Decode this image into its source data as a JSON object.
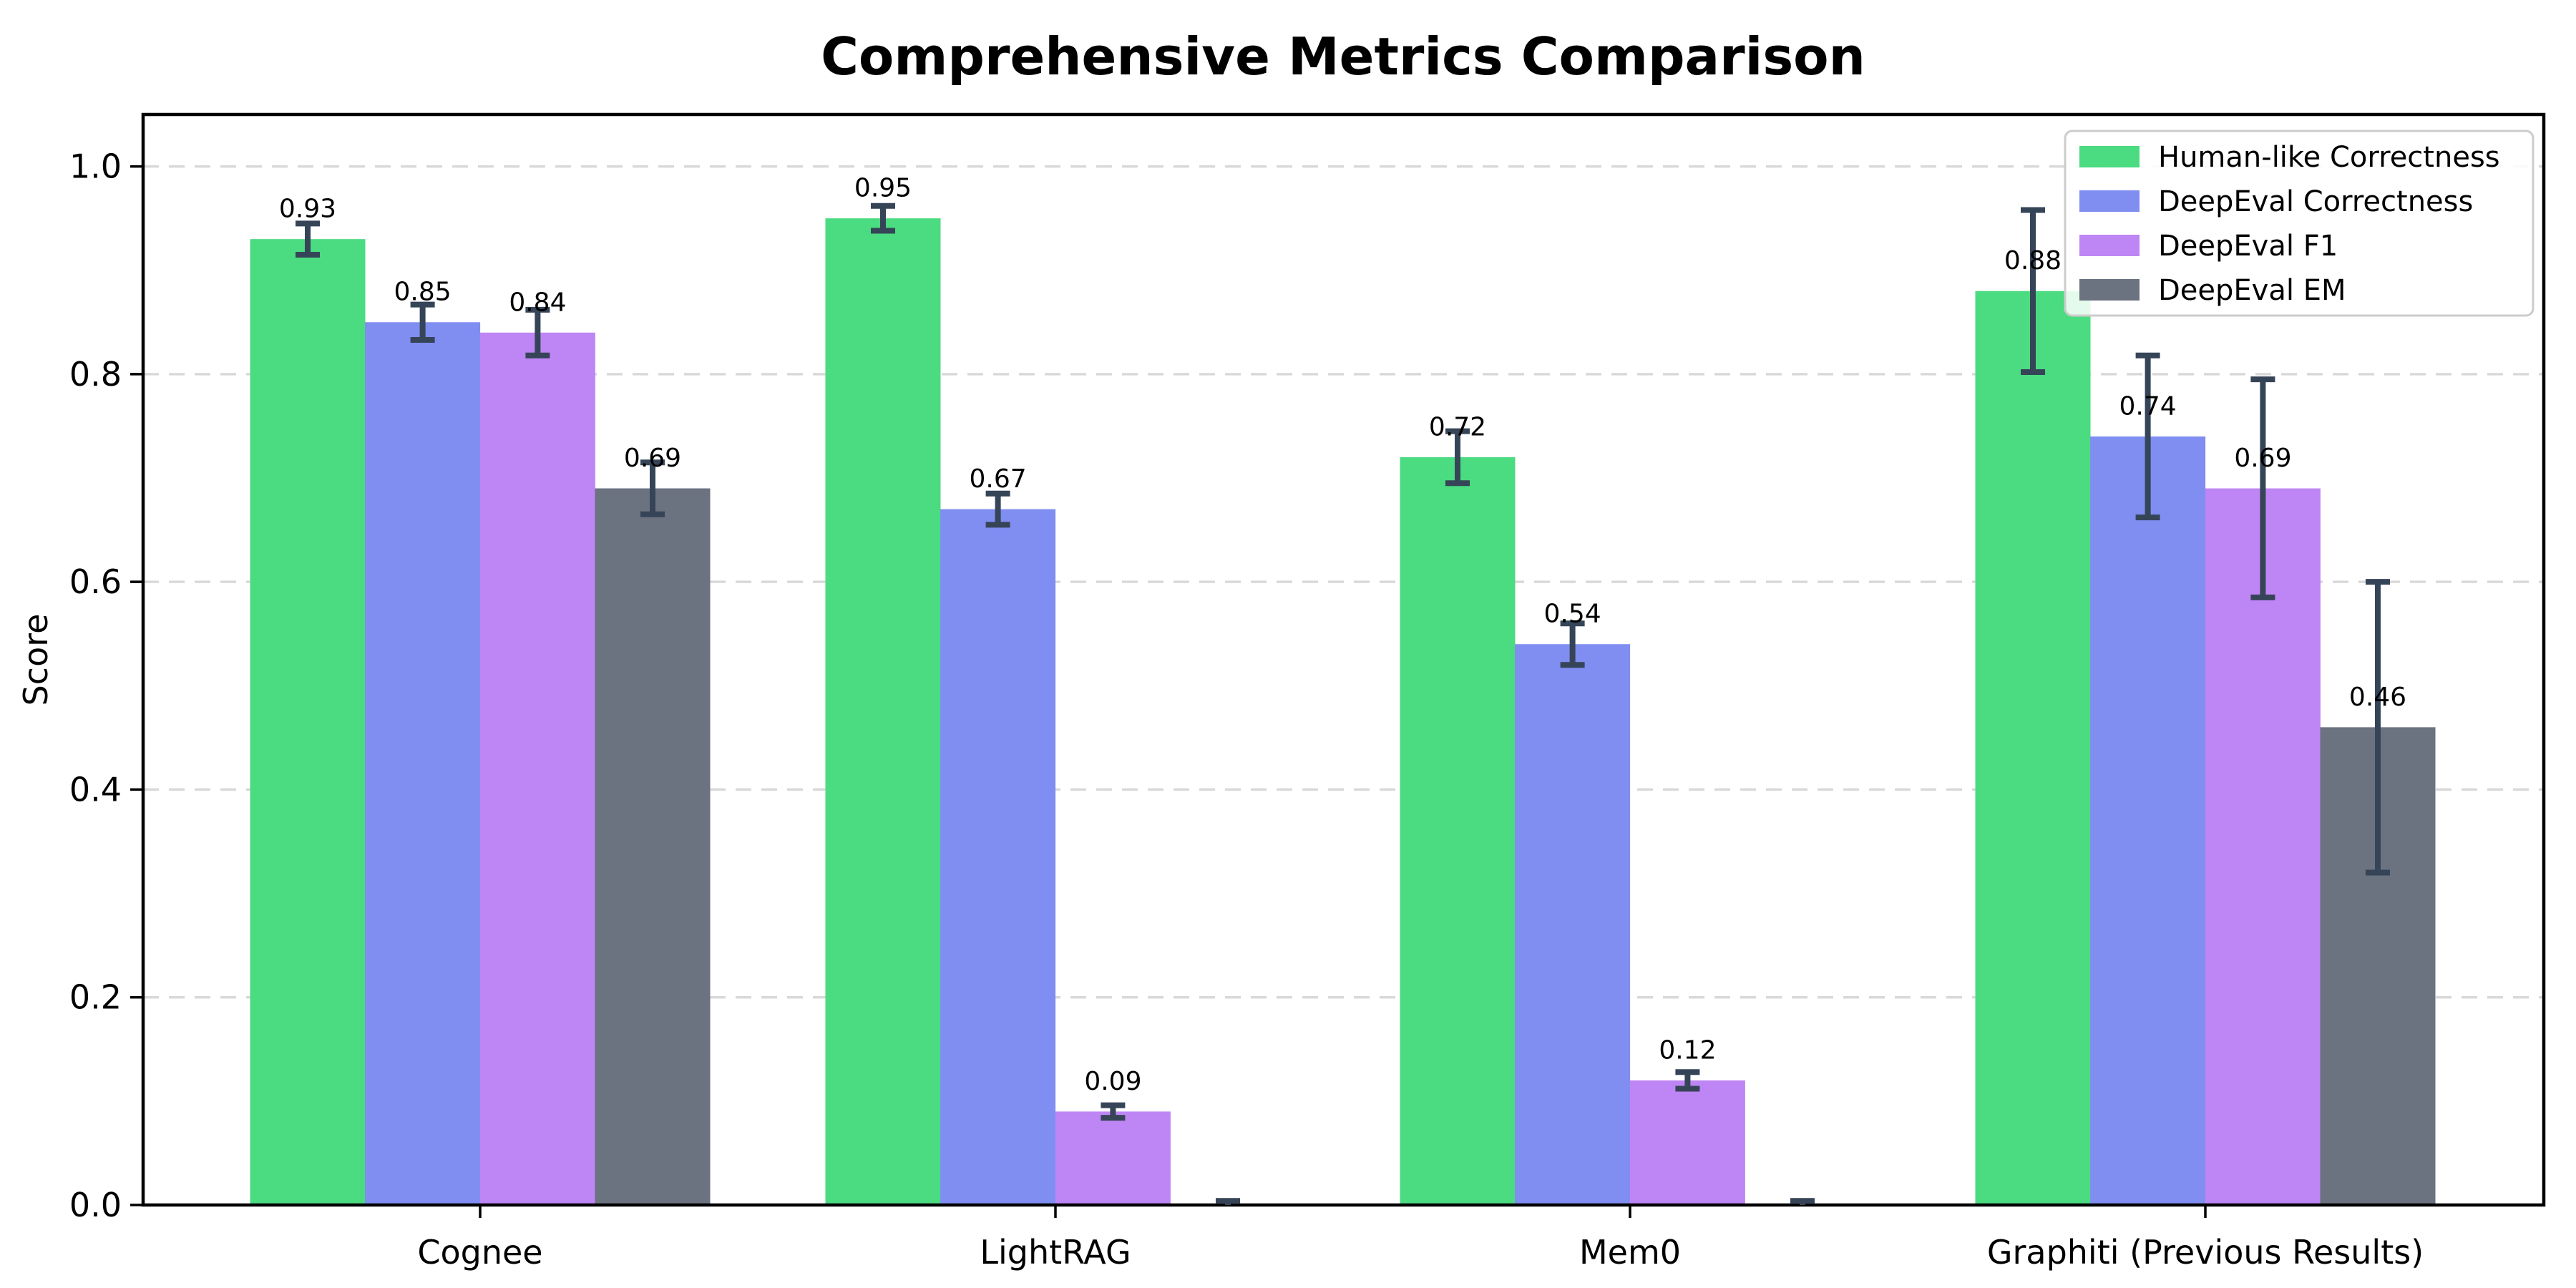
{
  "chart_data": {
    "type": "bar",
    "title": "Comprehensive Metrics Comparison",
    "xlabel": "",
    "ylabel": "Score",
    "categories": [
      "Cognee",
      "LightRAG",
      "Mem0",
      "Graphiti (Previous Results)"
    ],
    "series": [
      {
        "name": "Human-like Correctness",
        "color": "#4BDB80",
        "values": [
          0.93,
          0.95,
          0.72,
          0.88
        ],
        "errors": [
          0.015,
          0.012,
          0.025,
          0.078
        ],
        "labels": [
          "0.93",
          "0.95",
          "0.72",
          "0.88"
        ]
      },
      {
        "name": "DeepEval Correctness",
        "color": "#808DF1",
        "values": [
          0.85,
          0.67,
          0.54,
          0.74
        ],
        "errors": [
          0.017,
          0.015,
          0.02,
          0.078
        ],
        "labels": [
          "0.85",
          "0.67",
          "0.54",
          "0.74"
        ]
      },
      {
        "name": "DeepEval F1",
        "color": "#BE86F4",
        "values": [
          0.84,
          0.09,
          0.12,
          0.69
        ],
        "errors": [
          0.022,
          0.006,
          0.008,
          0.105
        ],
        "labels": [
          "0.84",
          "0.09",
          "0.12",
          "0.69"
        ]
      },
      {
        "name": "DeepEval EM",
        "color": "#6B7280",
        "values": [
          0.69,
          0.0,
          0.0,
          0.46
        ],
        "errors": [
          0.025,
          0.004,
          0.004,
          0.14
        ],
        "labels": [
          "0.69",
          "",
          "",
          "0.46"
        ]
      }
    ],
    "ylim": [
      0,
      1.05
    ],
    "yticks": [
      "0.0",
      "0.2",
      "0.4",
      "0.6",
      "0.8",
      "1.0"
    ],
    "grid": "horizontal-dashed",
    "legend_position": "upper-right",
    "colors": {
      "error_bar": "#364458",
      "grid_line": "#D9D9D9",
      "axis": "#000000",
      "legend_border": "#CCCCCC",
      "text": "#000000"
    }
  }
}
